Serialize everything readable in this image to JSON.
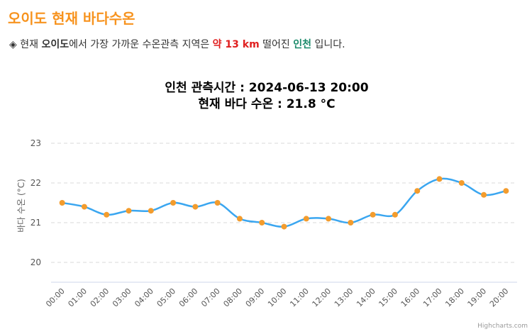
{
  "page": {
    "title": "오이도 현재 바다수온",
    "info": {
      "bullet": "◈",
      "prefix": "현재",
      "station": "오이도",
      "mid1": "에서 가장 가까운 수온관측 지역은",
      "distance": "약 13 km",
      "mid2": "떨어진",
      "obs_station": "인천",
      "suffix": "입니다."
    }
  },
  "colors": {
    "title": "#f7931e",
    "line": "#3aa6f0",
    "marker": "#f39c2d",
    "distance": "#e02020",
    "obs_station": "#1a8a6a"
  },
  "chart_data": {
    "type": "line",
    "title_lines": [
      "인천 관측시간 : 2024-06-13 20:00",
      "현재 바다 수온 : 21.8 °C"
    ],
    "ylabel": "바다 수온 (°C)",
    "xlabel": "",
    "categories": [
      "00:00",
      "01:00",
      "02:00",
      "03:00",
      "04:00",
      "05:00",
      "06:00",
      "07:00",
      "08:00",
      "09:00",
      "10:00",
      "11:00",
      "12:00",
      "13:00",
      "14:00",
      "15:00",
      "16:00",
      "17:00",
      "18:00",
      "19:00",
      "20:00"
    ],
    "series": [
      {
        "values": [
          21.5,
          21.4,
          21.2,
          21.3,
          21.3,
          21.5,
          21.4,
          21.5,
          21.1,
          21.0,
          20.9,
          21.1,
          21.1,
          21.0,
          21.2,
          21.2,
          21.8,
          22.1,
          22.0,
          21.7,
          21.8
        ]
      }
    ],
    "yticks": [
      20,
      21,
      22,
      23
    ],
    "ylim": [
      19.5,
      23.5
    ],
    "grid": true,
    "credits": "Highcharts.com"
  }
}
